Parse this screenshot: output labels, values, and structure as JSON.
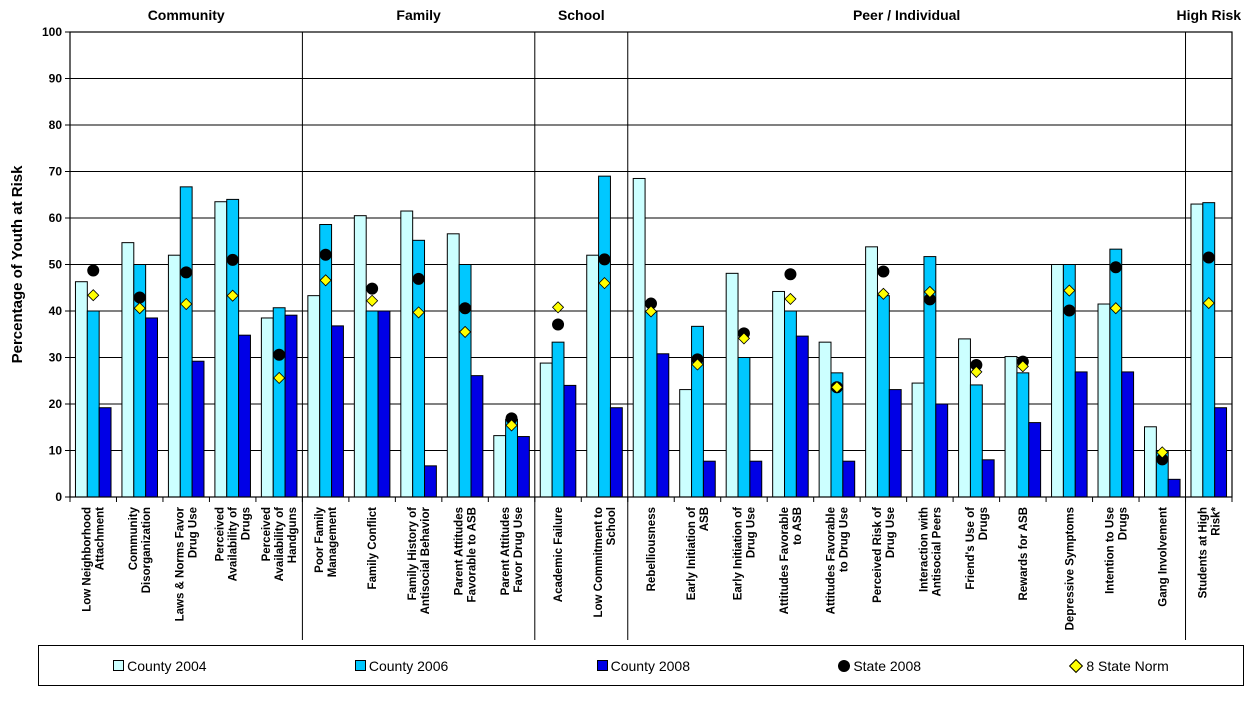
{
  "chart_data": {
    "type": "bar",
    "ylabel": "Percentage of Youth at Risk",
    "ylim": [
      0,
      100
    ],
    "yticks": [
      0,
      10,
      20,
      30,
      40,
      50,
      60,
      70,
      80,
      90,
      100
    ],
    "groups": [
      {
        "label": "Community",
        "count": 5
      },
      {
        "label": "Family",
        "count": 5
      },
      {
        "label": "School",
        "count": 2
      },
      {
        "label": "Peer / Individual",
        "count": 12
      },
      {
        "label": "High Risk",
        "count": 1
      }
    ],
    "categories": [
      "Low Neighborhood Attachment",
      "Community Disorganization",
      "Laws & Norms Favor Drug Use",
      "Perceived Availability of Drugs",
      "Perceived Availability of Handguns",
      "Poor Family Management",
      "Family Conflict",
      "Family History of Antisocial Behavior",
      "Parent Attitudes Favorable to ASB",
      "Parent Attitudes Favor Drug Use",
      "Academic Failure",
      "Low Commitment to School",
      "Rebelliousness",
      "Early Initiation of ASB",
      "Early Initiation of Drug Use",
      "Attitudes Favorable to ASB",
      "Attitudes Favorable to Drug Use",
      "Perceived Risk of Drug Use",
      "Interaction with Antisocial Peers",
      "Friend's Use of Drugs",
      "Rewards for ASB",
      "Depressive Symptoms",
      "Intention to Use Drugs",
      "Gang Involvement",
      "Students at High Risk*"
    ],
    "series": [
      {
        "name": "County 2004",
        "kind": "bar",
        "color": "#ccffff",
        "values": [
          46.3,
          54.7,
          52,
          63.5,
          38.5,
          43.3,
          60.5,
          61.5,
          56.6,
          13.2,
          28.8,
          52,
          68.5,
          23.1,
          48.1,
          44.2,
          33.3,
          53.8,
          24.5,
          34,
          30.2,
          50,
          41.5,
          15.1,
          63
        ]
      },
      {
        "name": "County 2006",
        "kind": "bar",
        "color": "#00c8ff",
        "values": [
          40,
          50,
          66.7,
          64,
          40.7,
          58.6,
          40,
          55.2,
          50,
          16.7,
          33.3,
          69,
          40,
          36.7,
          30,
          40,
          26.7,
          43.3,
          51.7,
          24.1,
          26.7,
          50,
          53.3,
          10,
          63.3
        ]
      },
      {
        "name": "County 2008",
        "kind": "bar",
        "color": "#0000e6",
        "values": [
          19.2,
          38.5,
          29.2,
          34.8,
          39.1,
          36.8,
          40,
          6.7,
          26.1,
          13,
          24,
          19.2,
          30.8,
          7.7,
          7.7,
          34.6,
          7.7,
          23.1,
          20,
          8,
          16,
          26.9,
          26.9,
          3.8,
          19.2
        ]
      },
      {
        "name": "State 2008",
        "kind": "marker",
        "color": "#000000",
        "values": [
          48.7,
          42.9,
          48.3,
          51,
          30.6,
          52.1,
          44.8,
          46.9,
          40.6,
          16.9,
          37.1,
          51.1,
          41.6,
          29.6,
          35.2,
          47.9,
          23.6,
          48.5,
          42.5,
          28.4,
          29.1,
          40.1,
          49.4,
          8.1,
          51.5
        ]
      },
      {
        "name": "8 State Norm",
        "kind": "marker",
        "color": "#ffff00",
        "values": [
          43.4,
          40.6,
          41.5,
          43.3,
          25.6,
          46.6,
          42.2,
          39.7,
          35.5,
          15.4,
          40.8,
          46,
          39.9,
          28.5,
          34.1,
          42.6,
          23.6,
          43.7,
          44.1,
          26.9,
          28.1,
          44.4,
          40.6,
          9.6,
          41.7
        ]
      }
    ],
    "legend_position": "bottom",
    "grid": true
  }
}
